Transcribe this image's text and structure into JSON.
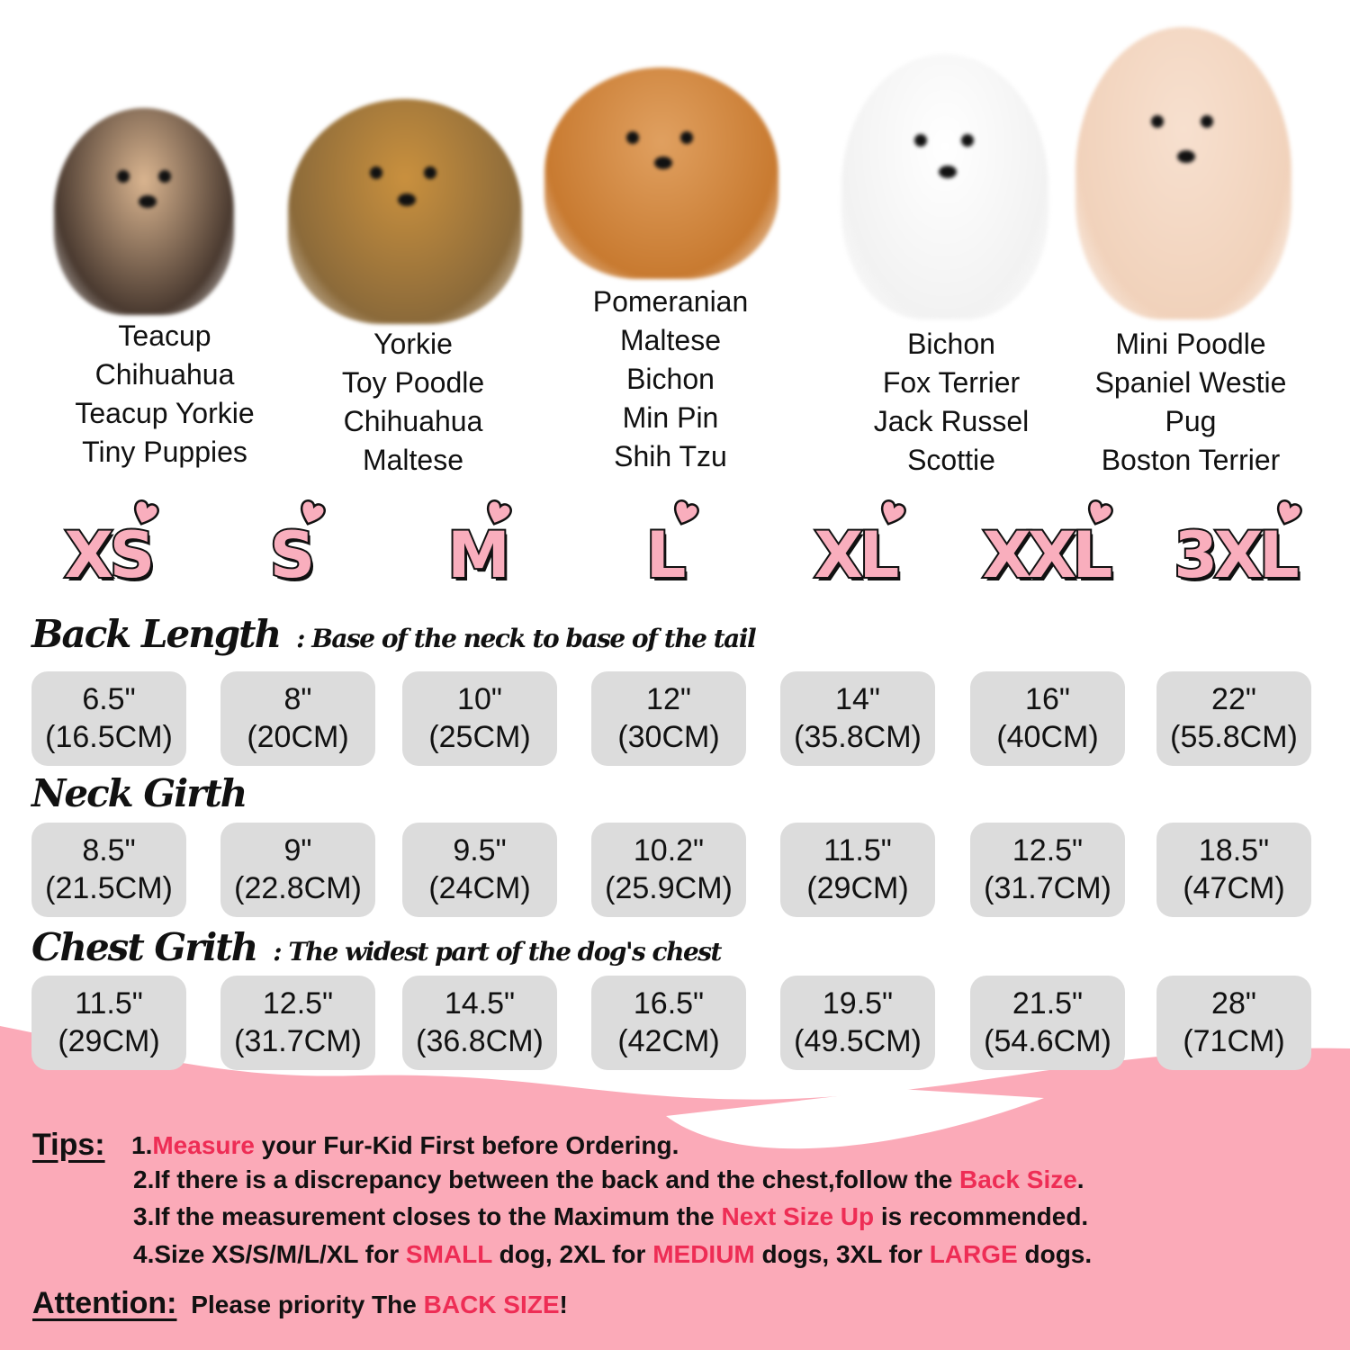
{
  "dog_groups": [
    {
      "lines": [
        "Teacup",
        "Chihuahua",
        "Teacup Yorkie",
        "Tiny Puppies"
      ]
    },
    {
      "lines": [
        "Yorkie",
        "Toy Poodle",
        "Chihuahua",
        "Maltese"
      ]
    },
    {
      "lines": [
        "Pomeranian",
        "Maltese",
        "Bichon",
        "Min Pin",
        "Shih Tzu"
      ]
    },
    {
      "lines": [
        "Bichon",
        "Fox Terrier",
        "Jack Russel",
        "Scottie"
      ]
    },
    {
      "lines": [
        "Mini Poodle",
        "Spaniel Westie",
        "Pug",
        "Boston Terrier"
      ]
    }
  ],
  "sizes": [
    "XS",
    "S",
    "M",
    "L",
    "XL",
    "XXL",
    "3XL"
  ],
  "back_length": {
    "title": "Back Length",
    "subtitle": ": Base of the neck to base of the tail",
    "values": [
      [
        "6.5\"",
        "(16.5CM)"
      ],
      [
        "8\"",
        "(20CM)"
      ],
      [
        "10\"",
        "(25CM)"
      ],
      [
        "12\"",
        "(30CM)"
      ],
      [
        "14\"",
        "(35.8CM)"
      ],
      [
        "16\"",
        "(40CM)"
      ],
      [
        "22\"",
        "(55.8CM)"
      ]
    ]
  },
  "neck_girth": {
    "title": "Neck Girth",
    "values": [
      [
        "8.5\"",
        "(21.5CM)"
      ],
      [
        "9\"",
        "(22.8CM)"
      ],
      [
        "9.5\"",
        "(24CM)"
      ],
      [
        "10.2\"",
        "(25.9CM)"
      ],
      [
        "11.5\"",
        "(29CM)"
      ],
      [
        "12.5\"",
        "(31.7CM)"
      ],
      [
        "18.5\"",
        "(47CM)"
      ]
    ]
  },
  "chest_girth": {
    "title": "Chest Grith",
    "subtitle": ": The widest part of the dog's chest",
    "values": [
      [
        "11.5\"",
        "(29CM)"
      ],
      [
        "12.5\"",
        "(31.7CM)"
      ],
      [
        "14.5\"",
        "(36.8CM)"
      ],
      [
        "16.5\"",
        "(42CM)"
      ],
      [
        "19.5\"",
        "(49.5CM)"
      ],
      [
        "21.5\"",
        "(54.6CM)"
      ],
      [
        "28\"",
        "(71CM)"
      ]
    ]
  },
  "tips": {
    "label": "Tips:",
    "lines": [
      [
        {
          "t": "1."
        },
        {
          "t": "Measure",
          "hl": true
        },
        {
          "t": " your Fur-Kid First before Ordering."
        }
      ],
      [
        {
          "t": "2.If there is a discrepancy between the back and the chest,follow the "
        },
        {
          "t": "Back Size",
          "hl": true
        },
        {
          "t": "."
        }
      ],
      [
        {
          "t": "3.If the measurement closes to the Maximum the "
        },
        {
          "t": "Next Size Up",
          "hl": true
        },
        {
          "t": " is recommended."
        }
      ],
      [
        {
          "t": "4.Size XS/S/M/L/XL for "
        },
        {
          "t": "SMALL",
          "hl": true
        },
        {
          "t": " dog, 2XL for "
        },
        {
          "t": "MEDIUM",
          "hl": true
        },
        {
          "t": " dogs, 3XL for "
        },
        {
          "t": "LARGE",
          "hl": true
        },
        {
          "t": " dogs."
        }
      ]
    ]
  },
  "attention": {
    "label": "Attention:",
    "segments": [
      {
        "t": "Please priority The "
      },
      {
        "t": "BACK SIZE",
        "hl": true
      },
      {
        "t": "!"
      }
    ]
  },
  "colors": {
    "pink_bg": "#fbaab8",
    "highlight": "#ee2d55",
    "cell_bg": "#dcdcdc",
    "size_fill": "#f9aebd"
  },
  "dog_photos": [
    "chihuahua-photo",
    "yorkie-photo",
    "pomeranian-photo",
    "maltese-photo",
    "mini-poodle-photo"
  ]
}
